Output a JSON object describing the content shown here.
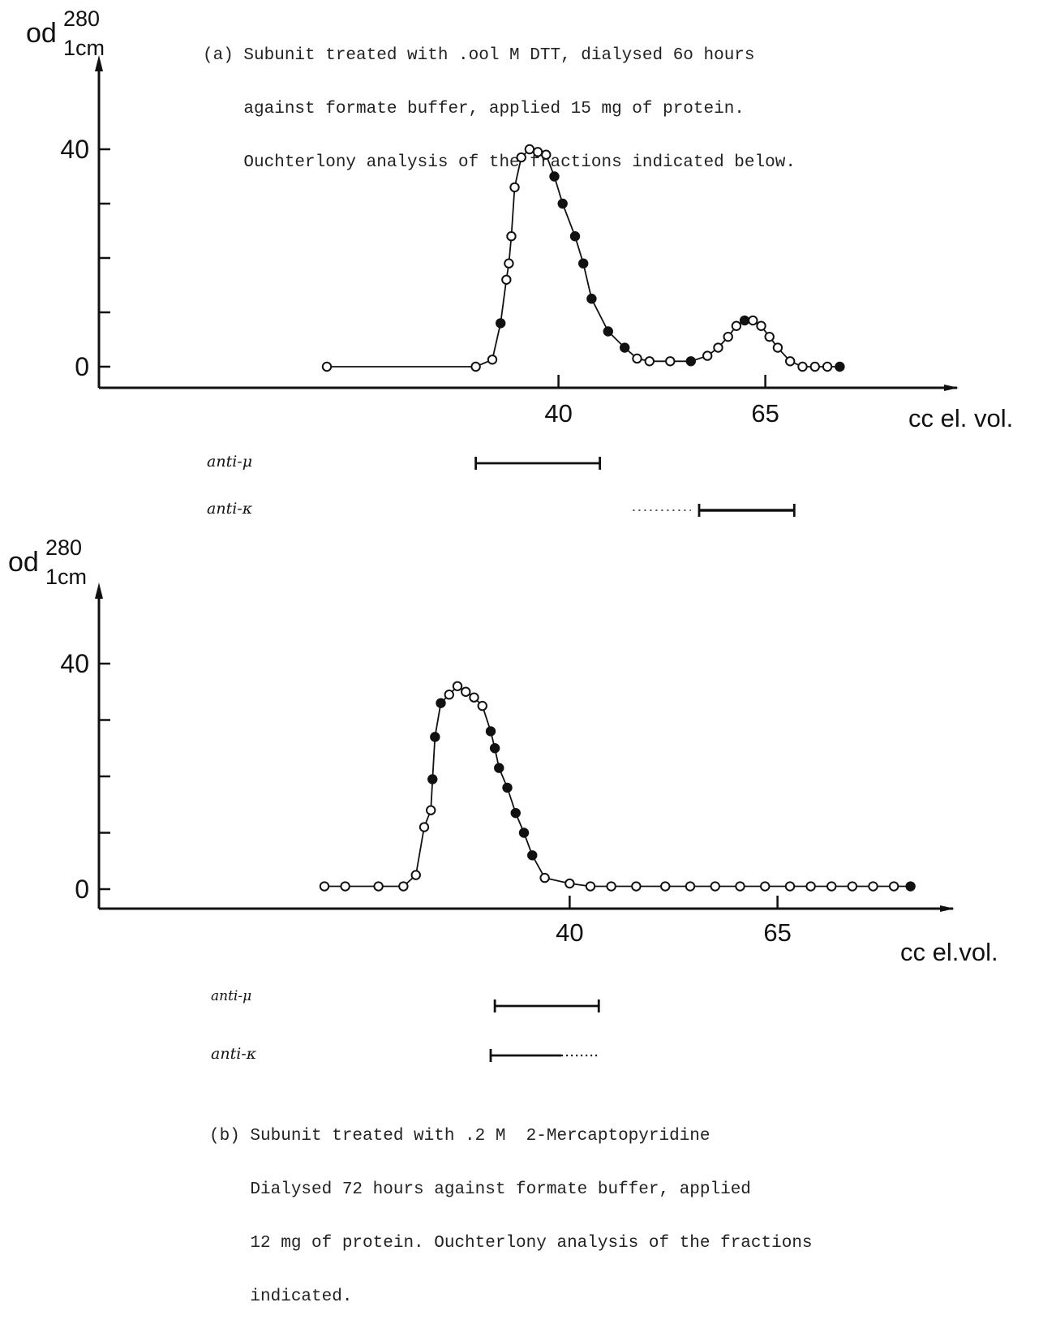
{
  "colors": {
    "ink": "#111111",
    "paper": "#ffffff",
    "open_marker": "#ffffff"
  },
  "chart_data": [
    {
      "type": "line",
      "caption_lines": [
        "(a) Subunit treated with .ool M DTT, dialysed 6o hours",
        "    against formate buffer, applied 15 mg of protein.",
        "    Ouchterlony analysis of the fractions indicated below."
      ],
      "ylabel": {
        "main": "od",
        "sup": "280",
        "sub": "1cm"
      },
      "xlabel": "cc  el. vol.",
      "y_tick_labels": [
        {
          "value": 0,
          "text": "0"
        },
        {
          "value": 40,
          "text": "40"
        }
      ],
      "y_minor_ticks": [
        10,
        20,
        30
      ],
      "x_tick_labels": [
        {
          "value": 40,
          "text": "40"
        },
        {
          "value": 65,
          "text": "65"
        }
      ],
      "xlim": [
        -2,
        100
      ],
      "ylim": [
        -4,
        52
      ],
      "series": [
        {
          "values": [
            {
              "x": 12,
              "y": 0
            },
            {
              "x": 30,
              "y": 0
            },
            {
              "x": 32,
              "y": 1.3
            },
            {
              "x": 33,
              "y": 8
            },
            {
              "x": 33.7,
              "y": 16
            },
            {
              "x": 34,
              "y": 19
            },
            {
              "x": 34.3,
              "y": 24
            },
            {
              "x": 34.7,
              "y": 33
            },
            {
              "x": 35.5,
              "y": 38.5
            },
            {
              "x": 36.5,
              "y": 40
            },
            {
              "x": 37.5,
              "y": 39.5
            },
            {
              "x": 38.5,
              "y": 39
            },
            {
              "x": 39.5,
              "y": 35
            },
            {
              "x": 40.5,
              "y": 30
            },
            {
              "x": 42,
              "y": 24
            },
            {
              "x": 43,
              "y": 19
            },
            {
              "x": 44,
              "y": 12.5
            },
            {
              "x": 46,
              "y": 6.5
            },
            {
              "x": 48,
              "y": 3.5
            },
            {
              "x": 49.5,
              "y": 1.5
            },
            {
              "x": 51,
              "y": 1
            },
            {
              "x": 53.5,
              "y": 1
            },
            {
              "x": 56,
              "y": 1
            },
            {
              "x": 58,
              "y": 2
            },
            {
              "x": 59.3,
              "y": 3.5
            },
            {
              "x": 60.5,
              "y": 5.5
            },
            {
              "x": 61.5,
              "y": 7.5
            },
            {
              "x": 62.5,
              "y": 8.5
            },
            {
              "x": 63.5,
              "y": 8.5
            },
            {
              "x": 64.5,
              "y": 7.5
            },
            {
              "x": 65.5,
              "y": 5.5
            },
            {
              "x": 66.5,
              "y": 3.5
            },
            {
              "x": 68,
              "y": 1
            },
            {
              "x": 69.5,
              "y": 0
            },
            {
              "x": 71,
              "y": 0
            },
            {
              "x": 72.5,
              "y": 0
            },
            {
              "x": 74,
              "y": 0
            }
          ],
          "filled": [
            false,
            false,
            false,
            true,
            false,
            false,
            false,
            false,
            false,
            false,
            false,
            false,
            true,
            true,
            true,
            true,
            true,
            true,
            true,
            false,
            false,
            false,
            true,
            false,
            false,
            false,
            false,
            true,
            false,
            false,
            false,
            false,
            false,
            false,
            false,
            false,
            true
          ]
        }
      ],
      "fraction_bars": [
        {
          "label": "anti-μ",
          "x_start": 30,
          "x_end": 45,
          "dotted_before": null,
          "dotted_after": null
        },
        {
          "label": "anti-κ",
          "x_start": 57,
          "x_end": 68.5,
          "dotted_before": [
            49,
            56
          ],
          "dotted_after": null
        }
      ]
    },
    {
      "type": "line",
      "ylabel": {
        "main": "od",
        "sup": "280",
        "sub": "1cm"
      },
      "xlabel": "cc   el.vol.",
      "y_tick_labels": [
        {
          "value": 0,
          "text": "0"
        },
        {
          "value": 40,
          "text": "40"
        }
      ],
      "y_minor_ticks": [
        10,
        20,
        30
      ],
      "x_tick_labels": [
        {
          "value": 40,
          "text": "40"
        },
        {
          "value": 65,
          "text": "65"
        }
      ],
      "xlim": [
        -2,
        100
      ],
      "ylim": [
        -4,
        52
      ],
      "series": [
        {
          "values": [
            {
              "x": 10.5,
              "y": 0.5
            },
            {
              "x": 13,
              "y": 0.5
            },
            {
              "x": 17,
              "y": 0.5
            },
            {
              "x": 20,
              "y": 0.5
            },
            {
              "x": 21.5,
              "y": 2.5
            },
            {
              "x": 22.5,
              "y": 11
            },
            {
              "x": 23.3,
              "y": 14
            },
            {
              "x": 23.5,
              "y": 19.5
            },
            {
              "x": 23.8,
              "y": 27
            },
            {
              "x": 24.5,
              "y": 33
            },
            {
              "x": 25.5,
              "y": 34.5
            },
            {
              "x": 26.5,
              "y": 36
            },
            {
              "x": 27.5,
              "y": 35
            },
            {
              "x": 28.5,
              "y": 34
            },
            {
              "x": 29.5,
              "y": 32.5
            },
            {
              "x": 30.5,
              "y": 28
            },
            {
              "x": 31,
              "y": 25
            },
            {
              "x": 31.5,
              "y": 21.5
            },
            {
              "x": 32.5,
              "y": 18
            },
            {
              "x": 33.5,
              "y": 13.5
            },
            {
              "x": 34.5,
              "y": 10
            },
            {
              "x": 35.5,
              "y": 6
            },
            {
              "x": 37,
              "y": 2
            },
            {
              "x": 40,
              "y": 1
            },
            {
              "x": 42.5,
              "y": 0.5
            },
            {
              "x": 45,
              "y": 0.5
            },
            {
              "x": 48,
              "y": 0.5
            },
            {
              "x": 51.5,
              "y": 0.5
            },
            {
              "x": 54.5,
              "y": 0.5
            },
            {
              "x": 57.5,
              "y": 0.5
            },
            {
              "x": 60.5,
              "y": 0.5
            },
            {
              "x": 63.5,
              "y": 0.5
            },
            {
              "x": 66.5,
              "y": 0.5
            },
            {
              "x": 69,
              "y": 0.5
            },
            {
              "x": 71.5,
              "y": 0.5
            },
            {
              "x": 74,
              "y": 0.5
            },
            {
              "x": 76.5,
              "y": 0.5
            },
            {
              "x": 79,
              "y": 0.5
            },
            {
              "x": 81,
              "y": 0.5
            }
          ],
          "filled": [
            false,
            false,
            false,
            false,
            false,
            false,
            false,
            true,
            true,
            true,
            false,
            false,
            false,
            false,
            false,
            true,
            true,
            true,
            true,
            true,
            true,
            true,
            false,
            false,
            false,
            false,
            false,
            false,
            false,
            false,
            false,
            false,
            false,
            false,
            false,
            false,
            false,
            false,
            true
          ]
        }
      ],
      "fraction_bars": [
        {
          "label": "anti-μ",
          "x_start": 31,
          "x_end": 43.5,
          "dotted_before": null,
          "dotted_after": null
        },
        {
          "label": "anti-κ",
          "x_start": 30.5,
          "x_end": 39,
          "dotted_before": null,
          "dotted_after": [
            39,
            43.5
          ]
        }
      ],
      "caption_lines": [
        "(b) Subunit treated with .2 M  2-Mercaptopyridine",
        "    Dialysed 72 hours against formate buffer, applied",
        "    12 mg of protein. Ouchterlony analysis of the fractions",
        "    indicated."
      ]
    }
  ]
}
